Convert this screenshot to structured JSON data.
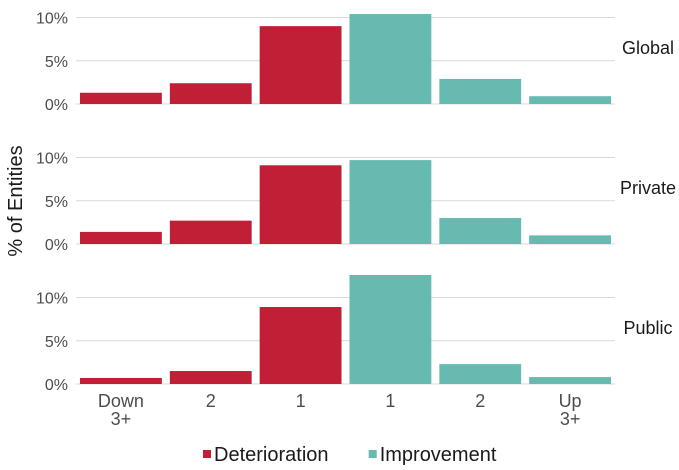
{
  "chart_data": {
    "type": "bar",
    "ylabel": "% of Entities",
    "categories": [
      "Down\n3+",
      "2",
      "1",
      "1",
      "2",
      "Up\n3+"
    ],
    "category_group": [
      "Deterioration",
      "Deterioration",
      "Deterioration",
      "Improvement",
      "Improvement",
      "Improvement"
    ],
    "yticks": [
      0,
      5,
      10
    ],
    "ytick_labels": [
      "0%",
      "5%",
      "10%"
    ],
    "ylim": [
      0,
      11
    ],
    "grid": true,
    "legend_position": "bottom",
    "legend": [
      {
        "name": "Deterioration",
        "color": "#C01F35"
      },
      {
        "name": "Improvement",
        "color": "#67BAB0"
      }
    ],
    "panels": [
      {
        "label": "Global",
        "values": [
          1.3,
          2.4,
          9.0,
          10.4,
          2.9,
          0.9
        ]
      },
      {
        "label": "Private",
        "values": [
          1.4,
          2.7,
          9.1,
          9.7,
          3.0,
          1.0
        ]
      },
      {
        "label": "Public",
        "values": [
          0.7,
          1.5,
          8.9,
          12.6,
          2.3,
          0.8
        ]
      }
    ]
  }
}
